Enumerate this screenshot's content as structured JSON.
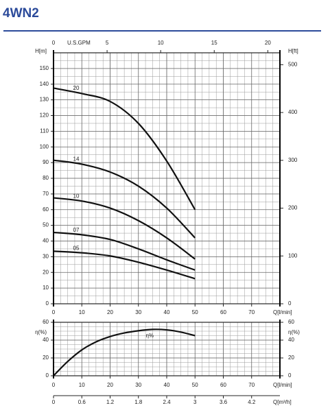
{
  "title": "4WN2",
  "chart_data": [
    {
      "type": "line",
      "y_label": "H[m]",
      "y2_label": "H[ft]",
      "x_label": "Q[l/min]",
      "x2_label": "U.S.GPM",
      "xlim": [
        0,
        80
      ],
      "xticks": [
        0,
        10,
        20,
        30,
        40,
        50,
        60,
        70
      ],
      "x2lim": [
        0,
        21.13
      ],
      "x2ticks": [
        0,
        5,
        10,
        15,
        20
      ],
      "ylim": [
        0,
        160
      ],
      "yticks": [
        0,
        10,
        20,
        30,
        40,
        50,
        60,
        70,
        80,
        90,
        100,
        110,
        120,
        130,
        140,
        150
      ],
      "y2lim": [
        0,
        524.9
      ],
      "y2ticks": [
        0,
        100,
        200,
        300,
        400,
        500
      ],
      "grid": true,
      "x": [
        0,
        10,
        20,
        30,
        40,
        50
      ],
      "series": [
        {
          "name": "20",
          "color": "#111111",
          "values": [
            137.5,
            134,
            129,
            115,
            91,
            60
          ]
        },
        {
          "name": "14",
          "color": "#111111",
          "values": [
            91.5,
            89,
            84,
            75,
            61,
            42
          ]
        },
        {
          "name": "10",
          "color": "#111111",
          "values": [
            67.5,
            65.5,
            61,
            53,
            42,
            28.5
          ]
        },
        {
          "name": "07",
          "color": "#111111",
          "values": [
            45.5,
            44,
            41,
            35,
            28,
            21.5
          ]
        },
        {
          "name": "05",
          "color": "#111111",
          "values": [
            33.5,
            32.5,
            30.5,
            26.5,
            21.5,
            16
          ]
        }
      ]
    },
    {
      "type": "line",
      "y_label": "η(%)",
      "y2_label": "η(%)",
      "x_label": "Q[l/min]",
      "x2_label": "Q[m³/h]",
      "xlim": [
        0,
        80
      ],
      "xticks": [
        0,
        10,
        20,
        30,
        40,
        50,
        60,
        70
      ],
      "x2lim": [
        0,
        4.8
      ],
      "x2ticks": [
        0,
        0.6,
        1.2,
        1.8,
        2.4,
        3,
        3.6,
        4.2
      ],
      "ylim": [
        0,
        60
      ],
      "yticks": [
        0,
        20,
        40,
        60
      ],
      "y2lim": [
        0,
        60
      ],
      "y2ticks": [
        0,
        20,
        40,
        60
      ],
      "grid": true,
      "x": [
        0,
        5,
        10,
        15,
        20,
        25,
        30,
        35,
        40,
        45,
        50
      ],
      "series": [
        {
          "name": "η%",
          "color": "#111111",
          "values": [
            0,
            16,
            29,
            38,
            44,
            48,
            50.5,
            52,
            51.5,
            49,
            45
          ]
        }
      ]
    }
  ]
}
